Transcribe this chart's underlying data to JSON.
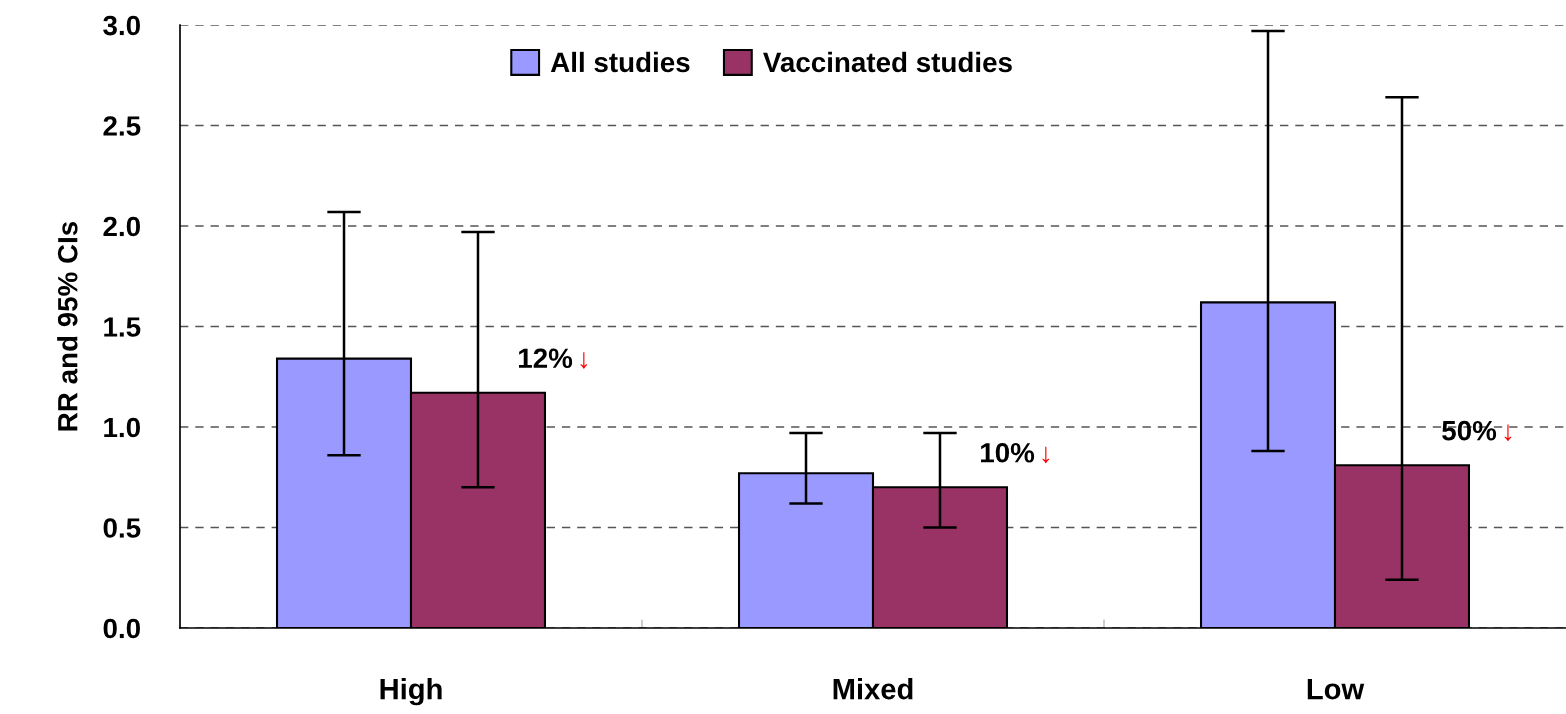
{
  "chart_data": {
    "type": "bar",
    "ylabel": "RR and 95% CIs",
    "categories": [
      "High",
      "Mixed",
      "Low"
    ],
    "series": [
      {
        "name": "All studies",
        "color": "#9999ff",
        "values": [
          1.34,
          0.77,
          1.62
        ],
        "errors": [
          [
            0.86,
            2.07
          ],
          [
            0.62,
            0.97
          ],
          [
            0.88,
            2.97
          ]
        ]
      },
      {
        "name": "Vaccinated studies",
        "color": "#993366",
        "values": [
          1.17,
          0.7,
          0.81
        ],
        "errors": [
          [
            0.7,
            1.97
          ],
          [
            0.5,
            0.97
          ],
          [
            0.24,
            2.64
          ]
        ]
      }
    ],
    "ylim": [
      0,
      3.0
    ],
    "yticks": [
      {
        "value": 0,
        "label": "0.0"
      },
      0.5,
      {
        "value": 1,
        "label": "1.0"
      },
      1.5,
      {
        "value": 2,
        "label": "2.0"
      },
      2.5,
      {
        "value": 3,
        "label": "3.0"
      }
    ],
    "grid": "y",
    "legend": "top",
    "annotations": [
      "12%↓",
      "10%↓",
      "50%↓"
    ]
  }
}
